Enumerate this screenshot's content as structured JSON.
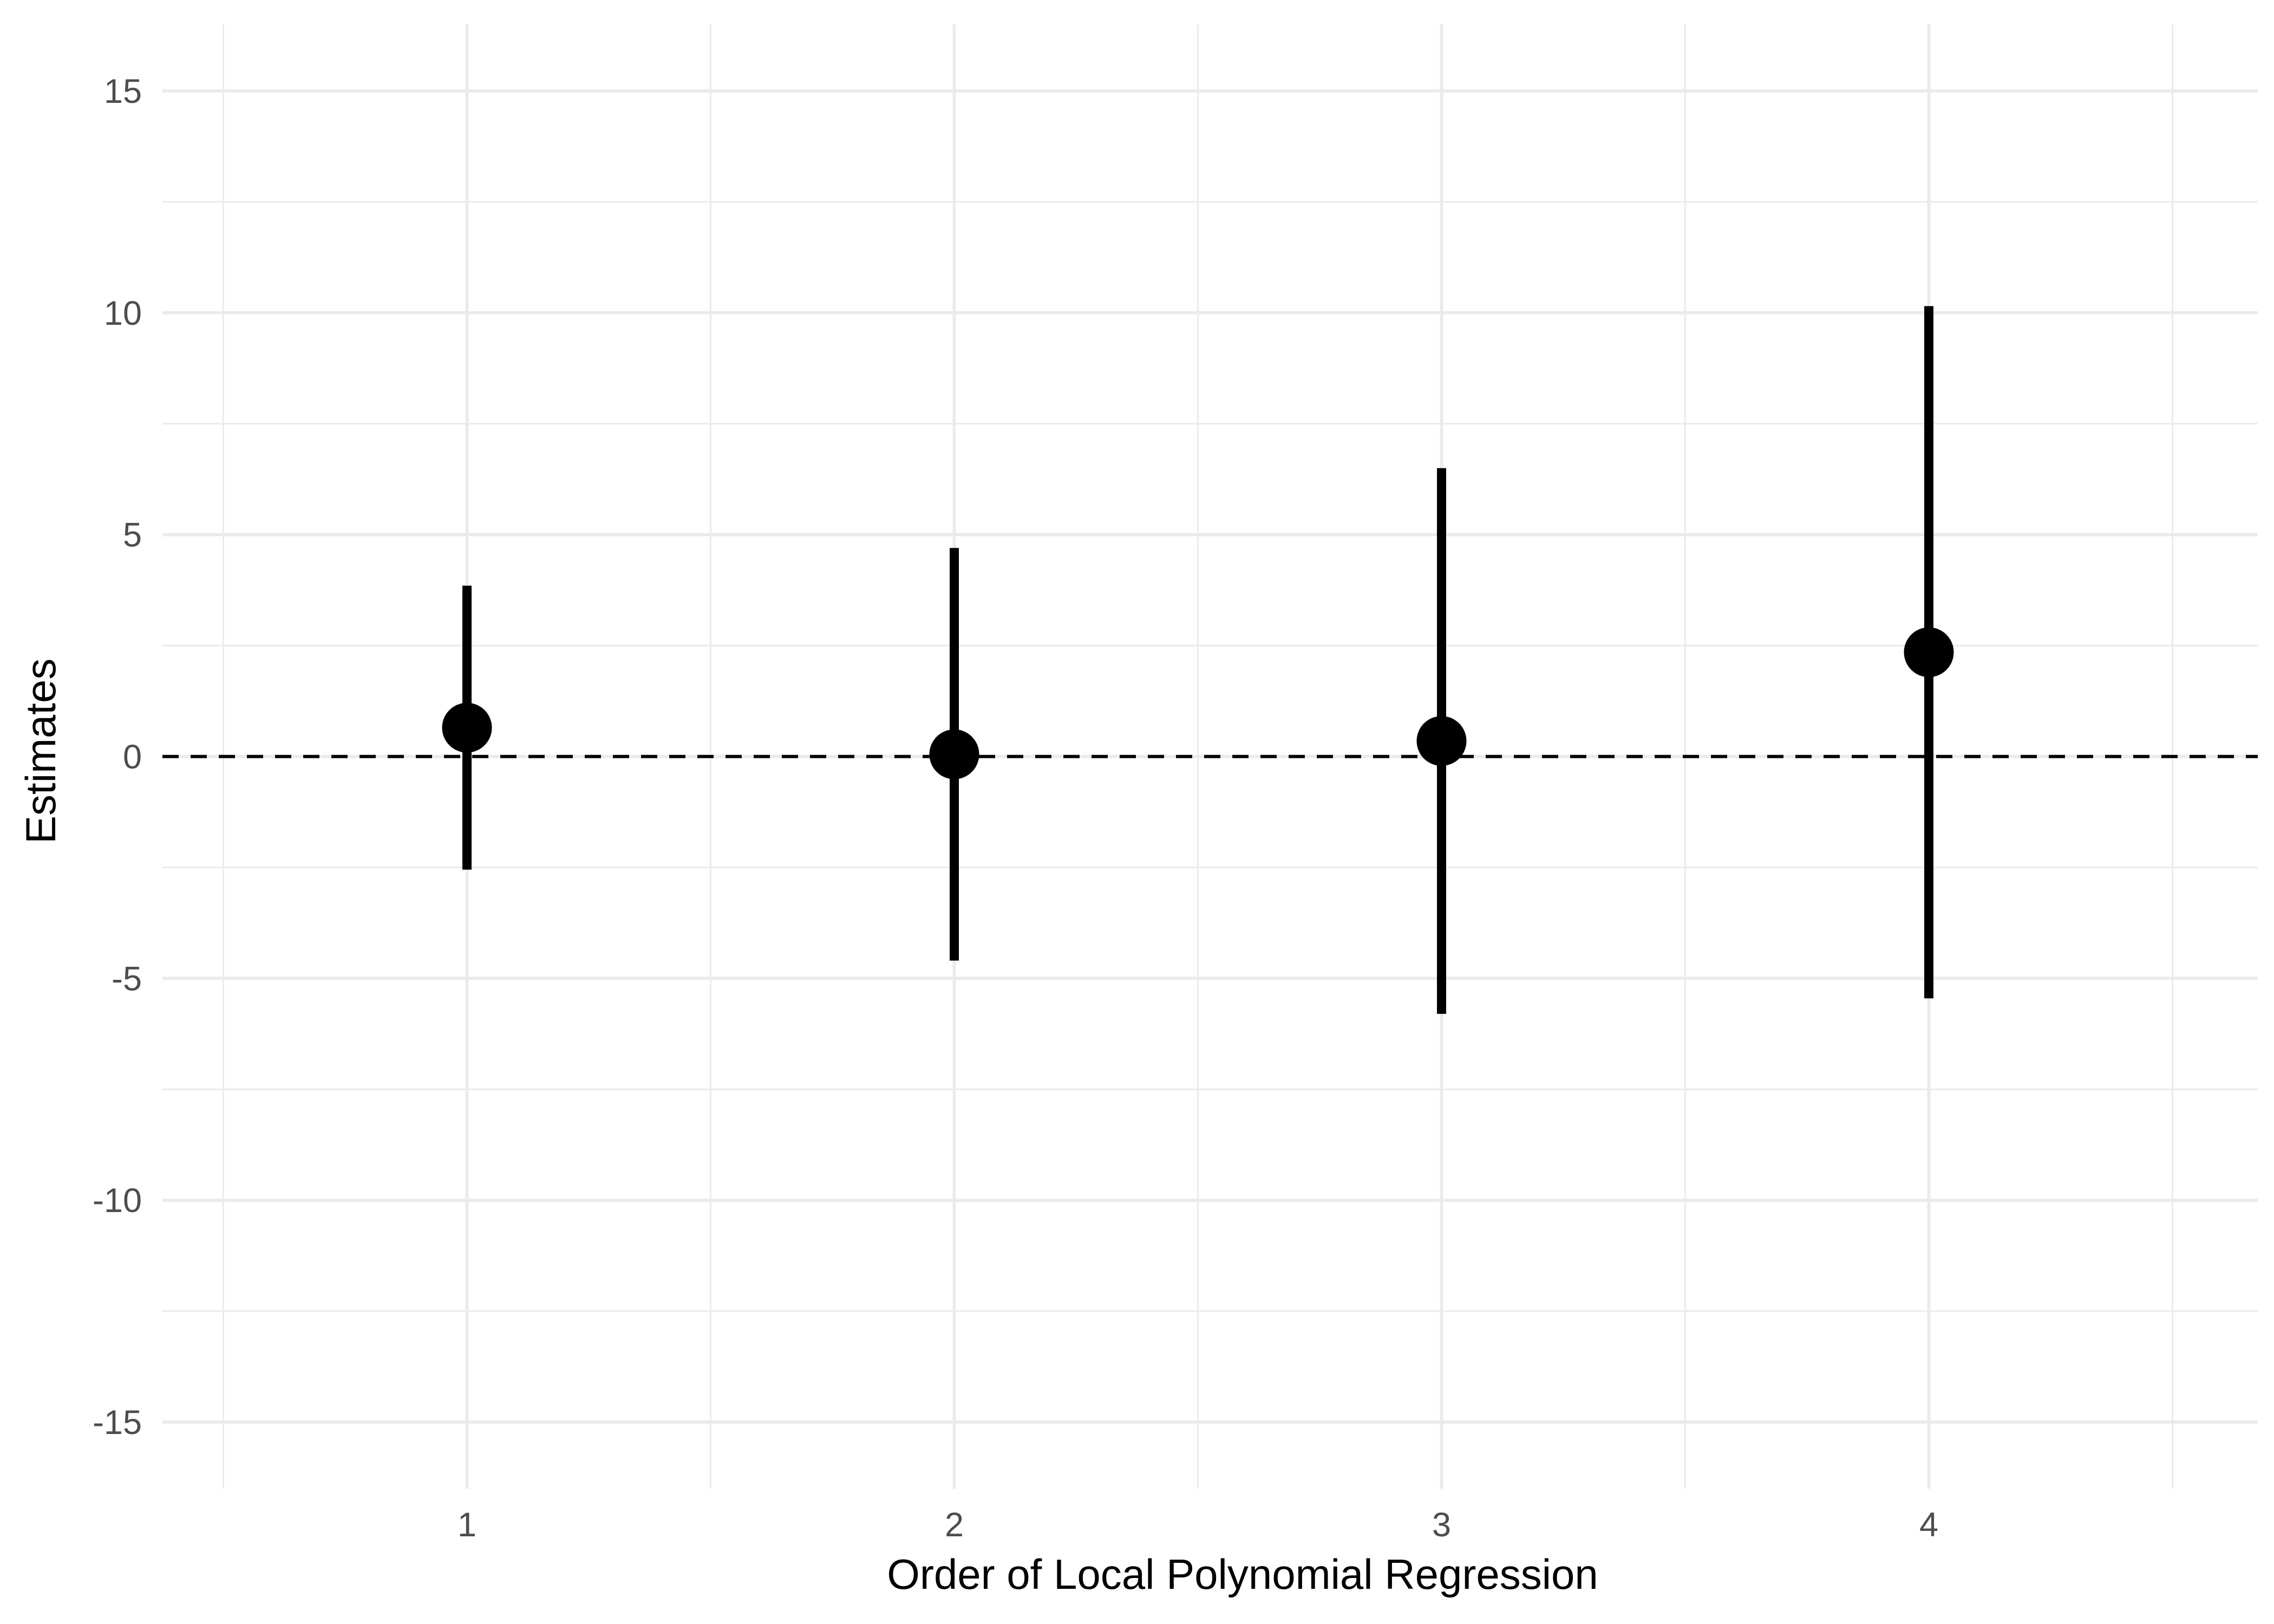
{
  "chart_data": {
    "type": "scatter",
    "title": "",
    "xlabel": "Order of Local Polynomial Regression",
    "ylabel": "Estimates",
    "x_ticks": [
      "1",
      "2",
      "3",
      "4"
    ],
    "y_ticks": [
      "-15",
      "-10",
      "-5",
      "0",
      "5",
      "10",
      "15"
    ],
    "xlim": [
      0.5,
      4.5
    ],
    "ylim": [
      -15,
      15
    ],
    "grid": true,
    "reference_line": {
      "y": 0,
      "style": "dashed"
    },
    "points": [
      {
        "x": 1,
        "estimate": 0.65,
        "lower": -2.55,
        "upper": 3.85
      },
      {
        "x": 2,
        "estimate": 0.05,
        "lower": -4.6,
        "upper": 4.7
      },
      {
        "x": 3,
        "estimate": 0.35,
        "lower": -5.8,
        "upper": 6.5
      },
      {
        "x": 4,
        "estimate": 2.35,
        "lower": -5.45,
        "upper": 10.15
      }
    ],
    "colors": {
      "point": "#000000",
      "errorbar": "#000000",
      "grid_major": "#ebebeb",
      "grid_minor": "#ebebeb",
      "reference_line": "#000000"
    }
  }
}
